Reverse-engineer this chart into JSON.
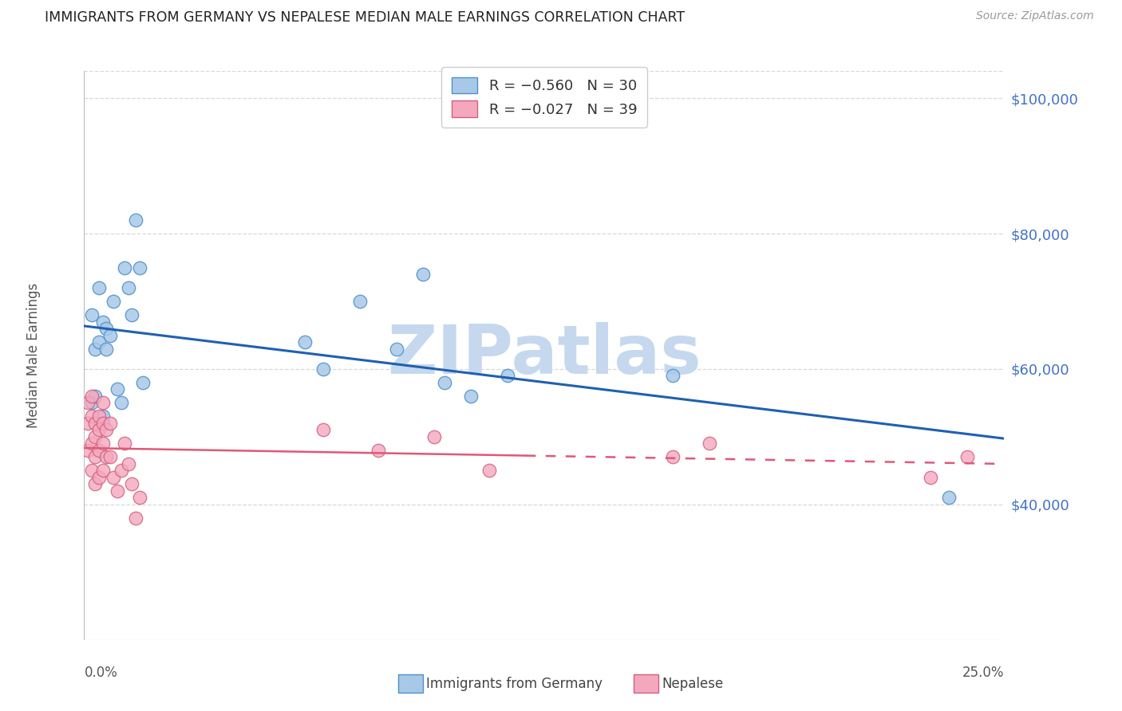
{
  "title": "IMMIGRANTS FROM GERMANY VS NEPALESE MEDIAN MALE EARNINGS CORRELATION CHART",
  "source": "Source: ZipAtlas.com",
  "ylabel": "Median Male Earnings",
  "watermark": "ZIPatlas",
  "legend_entries": [
    {
      "r_label": "R = −0.560",
      "n_label": "N = 30",
      "color": "#a8c8e8"
    },
    {
      "r_label": "R = −0.027",
      "n_label": "N = 39",
      "color": "#f4a8be"
    }
  ],
  "legend_labels_bottom": [
    "Immigrants from Germany",
    "Nepalese"
  ],
  "ytick_values": [
    40000,
    60000,
    80000,
    100000
  ],
  "ymin": 20000,
  "ymax": 104000,
  "xmin": 0.0,
  "xmax": 0.25,
  "germany_x": [
    0.002,
    0.002,
    0.003,
    0.003,
    0.004,
    0.004,
    0.005,
    0.005,
    0.006,
    0.006,
    0.007,
    0.008,
    0.009,
    0.01,
    0.011,
    0.012,
    0.013,
    0.014,
    0.015,
    0.016,
    0.06,
    0.065,
    0.075,
    0.085,
    0.092,
    0.098,
    0.105,
    0.115,
    0.16,
    0.235
  ],
  "germany_y": [
    68000,
    55000,
    63000,
    56000,
    72000,
    64000,
    53000,
    67000,
    66000,
    63000,
    65000,
    70000,
    57000,
    55000,
    75000,
    72000,
    68000,
    82000,
    75000,
    58000,
    64000,
    60000,
    70000,
    63000,
    74000,
    58000,
    56000,
    59000,
    59000,
    41000
  ],
  "nepalese_x": [
    0.001,
    0.001,
    0.001,
    0.002,
    0.002,
    0.002,
    0.002,
    0.003,
    0.003,
    0.003,
    0.003,
    0.004,
    0.004,
    0.004,
    0.004,
    0.005,
    0.005,
    0.005,
    0.005,
    0.006,
    0.006,
    0.007,
    0.007,
    0.008,
    0.009,
    0.01,
    0.011,
    0.012,
    0.013,
    0.014,
    0.015,
    0.065,
    0.08,
    0.095,
    0.11,
    0.16,
    0.17,
    0.23,
    0.24
  ],
  "nepalese_y": [
    55000,
    52000,
    48000,
    56000,
    53000,
    49000,
    45000,
    52000,
    50000,
    47000,
    43000,
    53000,
    51000,
    48000,
    44000,
    55000,
    52000,
    49000,
    45000,
    51000,
    47000,
    52000,
    47000,
    44000,
    42000,
    45000,
    49000,
    46000,
    43000,
    38000,
    41000,
    51000,
    48000,
    50000,
    45000,
    47000,
    49000,
    44000,
    47000
  ],
  "germany_color": "#a8c8e8",
  "germany_edge_color": "#5090c8",
  "germany_line_color": "#2060b0",
  "nepalese_color": "#f4a8be",
  "nepalese_edge_color": "#d06080",
  "nepalese_line_solid_color": "#e05878",
  "nepalese_line_dash_color": "#e05878",
  "background_color": "#ffffff",
  "grid_color": "#d8d8d8",
  "title_color": "#222222",
  "right_axis_color": "#4472c4",
  "source_color": "#999999",
  "watermark_color": "#c5d8ee",
  "xlabel_color": "#555555",
  "ylabel_color": "#555555"
}
